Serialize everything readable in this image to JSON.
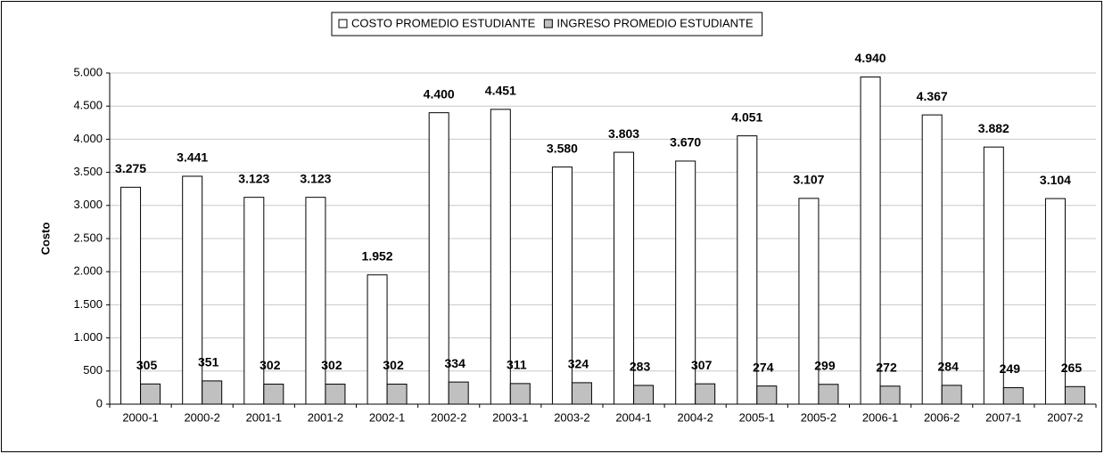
{
  "chart_data": {
    "type": "bar",
    "y_label": "Costo",
    "categories": [
      "2000-1",
      "2000-2",
      "2001-1",
      "2001-2",
      "2002-1",
      "2002-2",
      "2003-1",
      "2003-2",
      "2004-1",
      "2004-2",
      "2005-1",
      "2005-2",
      "2006-1",
      "2006-2",
      "2007-1",
      "2007-2"
    ],
    "series": [
      {
        "name": "COSTO PROMEDIO ESTUDIANTE",
        "color": "#ffffff",
        "values": [
          3275,
          3441,
          3123,
          3123,
          1952,
          4400,
          4451,
          3580,
          3803,
          3670,
          4051,
          3107,
          4940,
          4367,
          3882,
          3104
        ],
        "value_labels": [
          "3.275",
          "3.441",
          "3.123",
          "3.123",
          "1.952",
          "4.400",
          "4.451",
          "3.580",
          "3.803",
          "3.670",
          "4.051",
          "3.107",
          "4.940",
          "4.367",
          "3.882",
          "3.104"
        ]
      },
      {
        "name": "INGRESO PROMEDIO ESTUDIANTE",
        "color": "#c0c0c0",
        "values": [
          305,
          351,
          302,
          302,
          302,
          334,
          311,
          324,
          283,
          307,
          274,
          299,
          272,
          284,
          249,
          265
        ]
      }
    ],
    "ylim": [
      0,
      5000
    ],
    "yticks": [
      0,
      500,
      {
        "value": 1000,
        "label": "1.000"
      },
      {
        "value": 1500,
        "label": "1.500"
      },
      {
        "value": 2000,
        "label": "2.000"
      },
      {
        "value": 2500,
        "label": "2.500"
      },
      {
        "value": 3000,
        "label": "3.000"
      },
      {
        "value": 3500,
        "label": "3.500"
      },
      {
        "value": 4000,
        "label": "4.000"
      },
      {
        "value": 4500,
        "label": "4.500"
      },
      {
        "value": 5000,
        "label": "5.000"
      }
    ],
    "grid": true,
    "legend": "top"
  }
}
